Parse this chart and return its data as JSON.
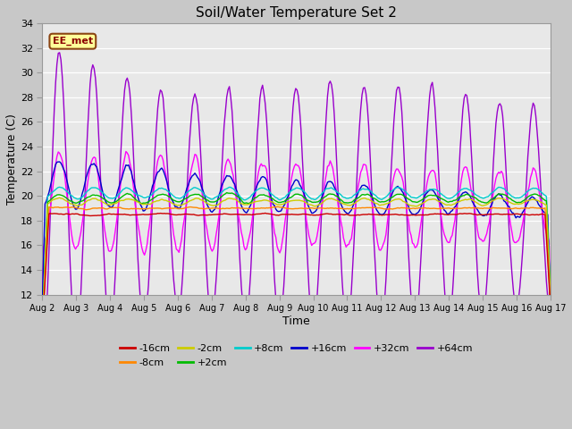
{
  "title": "Soil/Water Temperature Set 2",
  "xlabel": "Time",
  "ylabel": "Temperature (C)",
  "ylim": [
    12,
    34
  ],
  "yticks": [
    12,
    14,
    16,
    18,
    20,
    22,
    24,
    26,
    28,
    30,
    32,
    34
  ],
  "xlim_days": 15,
  "n_points": 384,
  "series_colors": {
    "-16cm": "#cc0000",
    "-8cm": "#ff8800",
    "-2cm": "#cccc00",
    "+2cm": "#00bb00",
    "+8cm": "#00cccc",
    "+16cm": "#0000cc",
    "+32cm": "#ff00ff",
    "+64cm": "#9900cc"
  },
  "series_order": [
    "-16cm",
    "-8cm",
    "-2cm",
    "+2cm",
    "+8cm",
    "+16cm",
    "+32cm",
    "+64cm"
  ],
  "legend_row1": [
    "-16cm",
    "-8cm",
    "-2cm",
    "+2cm",
    "+8cm",
    "+16cm"
  ],
  "legend_row2": [
    "+32cm",
    "+64cm"
  ],
  "annotation_text": "EE_met",
  "fig_bg": "#c8c8c8",
  "plot_bg": "#e8e8e8",
  "grid_color": "#ffffff",
  "spine_color": "#999999"
}
